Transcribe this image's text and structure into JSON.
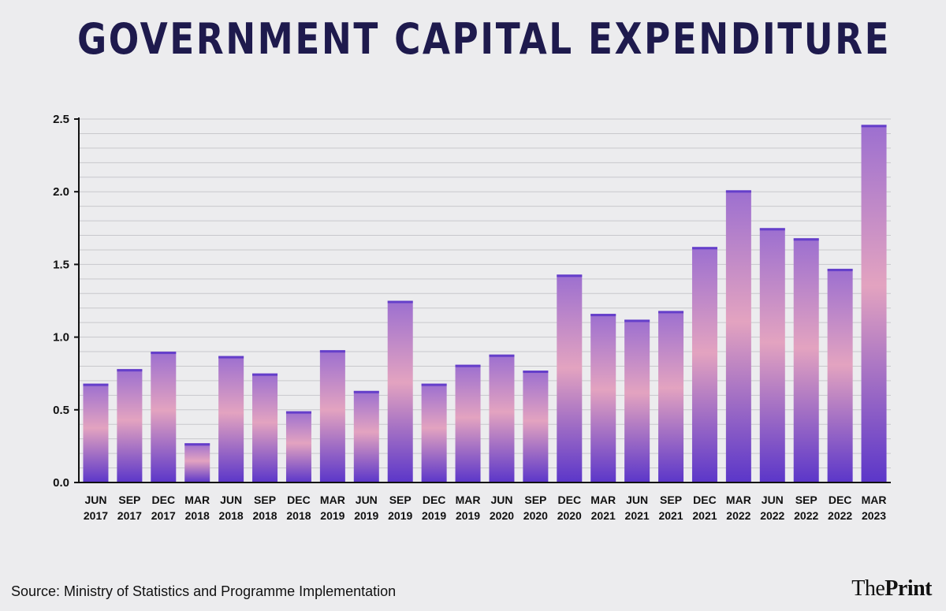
{
  "title": "GOVERNMENT CAPITAL EXPENDITURE",
  "footer": {
    "source": "Source: Ministry of Statistics and Programme Implementation",
    "brand_prefix": "The",
    "brand_main": "Print"
  },
  "colors": {
    "background": "#ececee",
    "title": "#1e1a4d",
    "bar_top": "#9c6fd0",
    "bar_mid": "#e3a3c0",
    "bar_bottom": "#5b36c9",
    "grid": "#c8c8cc",
    "axis": "#111111"
  },
  "chart_data": {
    "type": "bar",
    "title": "GOVERNMENT CAPITAL EXPENDITURE",
    "xlabel": "",
    "ylabel": "",
    "ylim": [
      0,
      2.5
    ],
    "yticks": [
      0.0,
      0.5,
      1.0,
      1.5,
      2.0,
      2.5
    ],
    "ytick_labels": [
      "0.0",
      "0.5",
      "1.0",
      "1.5",
      "2.0",
      "2.5"
    ],
    "grid": true,
    "categories": [
      [
        "JUN",
        "2017"
      ],
      [
        "SEP",
        "2017"
      ],
      [
        "DEC",
        "2017"
      ],
      [
        "MAR",
        "2018"
      ],
      [
        "JUN",
        "2018"
      ],
      [
        "SEP",
        "2018"
      ],
      [
        "DEC",
        "2018"
      ],
      [
        "MAR",
        "2019"
      ],
      [
        "JUN",
        "2019"
      ],
      [
        "SEP",
        "2019"
      ],
      [
        "DEC",
        "2019"
      ],
      [
        "MAR",
        "2019"
      ],
      [
        "JUN",
        "2020"
      ],
      [
        "SEP",
        "2020"
      ],
      [
        "DEC",
        "2020"
      ],
      [
        "MAR",
        "2021"
      ],
      [
        "JUN",
        "2021"
      ],
      [
        "SEP",
        "2021"
      ],
      [
        "DEC",
        "2021"
      ],
      [
        "MAR",
        "2022"
      ],
      [
        "JUN",
        "2022"
      ],
      [
        "SEP",
        "2022"
      ],
      [
        "DEC",
        "2022"
      ],
      [
        "MAR",
        "2023"
      ]
    ],
    "values": [
      0.68,
      0.78,
      0.9,
      0.27,
      0.87,
      0.75,
      0.49,
      0.91,
      0.63,
      1.25,
      0.68,
      0.81,
      0.88,
      0.77,
      1.43,
      1.16,
      1.12,
      1.18,
      1.62,
      2.01,
      1.75,
      1.68,
      1.47,
      2.46
    ]
  }
}
